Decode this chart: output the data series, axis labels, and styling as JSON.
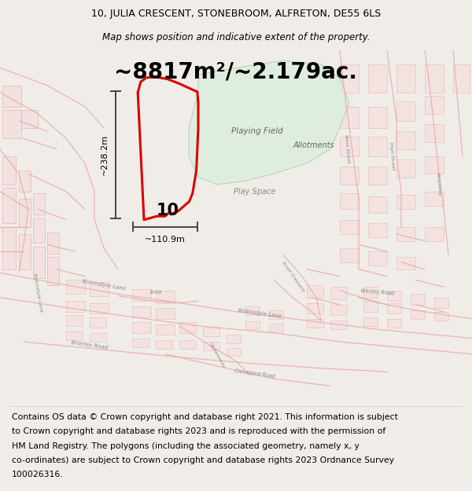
{
  "title_line1": "10, JULIA CRESCENT, STONEBROOM, ALFRETON, DE55 6LS",
  "title_line2": "Map shows position and indicative extent of the property.",
  "area_text": "~8817m²/~2.179ac.",
  "dimension_vertical": "~238.2m",
  "dimension_horizontal": "~110.9m",
  "label_number": "10",
  "footer_lines": [
    "Contains OS data © Crown copyright and database right 2021. This information is subject",
    "to Crown copyright and database rights 2023 and is reproduced with the permission of",
    "HM Land Registry. The polygons (including the associated geometry, namely x, y",
    "co-ordinates) are subject to Crown copyright and database rights 2023 Ordnance Survey",
    "100026316."
  ],
  "bg_color": "#ffffff",
  "map_bg": "#ffffff",
  "outer_bg": "#f0ede8",
  "plot_polygon_color": "#dd0000",
  "green_area_color": "#ddeedd",
  "road_color": "#e8aaaa",
  "building_edge_color": "#e8aaaa",
  "building_fill_color": "#f5dddd",
  "gray_build_edge": "#cccccc",
  "gray_build_fill": "#eeeeee",
  "dim_line_color": "#444444",
  "title_fontsize": 9.0,
  "area_fontsize": 20,
  "footer_fontsize": 7.8,
  "label_fontsize": 7.5
}
